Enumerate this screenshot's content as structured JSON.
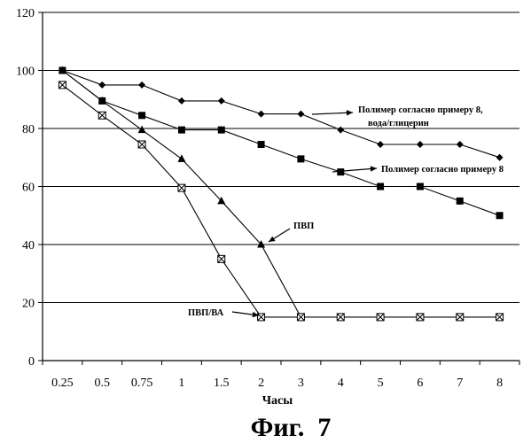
{
  "chart_data": {
    "type": "line",
    "categories": [
      "0.25",
      "0.5",
      "0.75",
      "1",
      "1.5",
      "2",
      "3",
      "4",
      "5",
      "6",
      "7",
      "8"
    ],
    "xlabel": "Часы",
    "ylabel": "",
    "ylim": [
      0,
      120
    ],
    "yticks": [
      "0",
      "20",
      "40",
      "60",
      "80",
      "100",
      "120"
    ],
    "grid": "horizontal",
    "caption": "Фиг.  7",
    "series": [
      {
        "label": "Полимер согласно примеру 8,",
        "label_line2": "вода/глицерин",
        "marker": "diamond",
        "values": [
          100,
          95,
          95,
          89.5,
          89.5,
          85,
          85,
          79.5,
          74.5,
          74.5,
          74.5,
          70
        ]
      },
      {
        "label": "Полимер согласно примеру 8",
        "marker": "square",
        "values": [
          100,
          89.5,
          84.5,
          79.5,
          79.5,
          74.5,
          69.5,
          65,
          60,
          60,
          55,
          50
        ]
      },
      {
        "label": "ПВП",
        "marker": "triangle",
        "values": [
          100,
          89.5,
          79.5,
          69.5,
          55,
          40,
          15,
          null,
          null,
          null,
          null,
          null
        ]
      },
      {
        "label": "ПВП/ВА",
        "marker": "boxx",
        "values": [
          95,
          84.5,
          74.5,
          59.5,
          35,
          15,
          15,
          15,
          15,
          15,
          15,
          15
        ]
      }
    ]
  }
}
